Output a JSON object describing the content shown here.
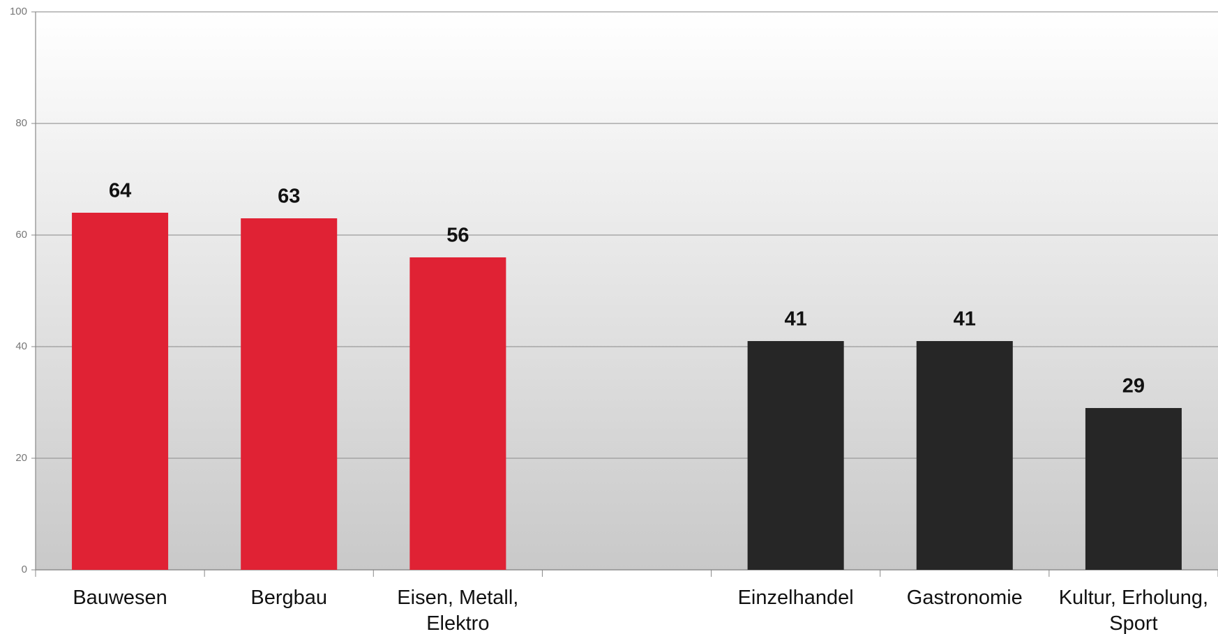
{
  "chart_data": {
    "type": "bar",
    "categories": [
      "Bauwesen",
      "Bergbau",
      "Eisen, Metall,\nElektro",
      null,
      "Einzelhandel",
      "Gastronomie",
      "Kultur, Erholung,\nSport"
    ],
    "values": [
      64,
      63,
      56,
      null,
      41,
      41,
      29
    ],
    "colors": [
      "#e02234",
      "#e02234",
      "#e02234",
      null,
      "#262626",
      "#262626",
      "#262626"
    ],
    "ylim": [
      0,
      100
    ],
    "yticks": [
      0,
      20,
      40,
      60,
      80,
      100
    ],
    "grid": true
  }
}
